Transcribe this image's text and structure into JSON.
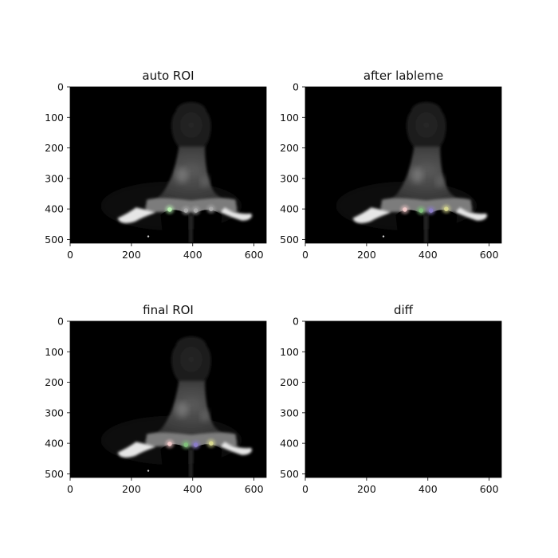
{
  "chart_data": [
    {
      "type": "image",
      "title": "auto ROI",
      "xlim": [
        0,
        640
      ],
      "ylim": [
        512,
        0
      ],
      "xticks": [
        0,
        200,
        400,
        600
      ],
      "yticks": [
        0,
        100,
        200,
        300,
        400,
        500
      ],
      "content": "grayscale-mouse",
      "roi_markers": [
        {
          "x": 325,
          "y": 402,
          "color": "#b8f0b0"
        },
        {
          "x": 378,
          "y": 405,
          "color": "#aaaaaa"
        },
        {
          "x": 410,
          "y": 405,
          "color": "#aaaaaa"
        },
        {
          "x": 460,
          "y": 400,
          "color": "#aaaaaa"
        }
      ]
    },
    {
      "type": "image",
      "title": "after lableme",
      "xlim": [
        0,
        640
      ],
      "ylim": [
        512,
        0
      ],
      "xticks": [
        0,
        200,
        400,
        600
      ],
      "yticks": [
        0,
        100,
        200,
        300,
        400,
        500
      ],
      "content": "grayscale-mouse",
      "roi_markers": [
        {
          "x": 325,
          "y": 402,
          "color": "#f0c8c8"
        },
        {
          "x": 378,
          "y": 405,
          "color": "#7fc07a"
        },
        {
          "x": 410,
          "y": 405,
          "color": "#8a7cc8"
        },
        {
          "x": 460,
          "y": 400,
          "color": "#d8d890"
        }
      ]
    },
    {
      "type": "image",
      "title": "final ROI",
      "xlim": [
        0,
        640
      ],
      "ylim": [
        512,
        0
      ],
      "xticks": [
        0,
        200,
        400,
        600
      ],
      "yticks": [
        0,
        100,
        200,
        300,
        400,
        500
      ],
      "content": "grayscale-mouse",
      "roi_markers": [
        {
          "x": 325,
          "y": 402,
          "color": "#f0c8c8"
        },
        {
          "x": 378,
          "y": 405,
          "color": "#7fc07a"
        },
        {
          "x": 410,
          "y": 405,
          "color": "#8a7cc8"
        },
        {
          "x": 460,
          "y": 400,
          "color": "#d8d890"
        }
      ]
    },
    {
      "type": "image",
      "title": "diff",
      "xlim": [
        0,
        640
      ],
      "ylim": [
        512,
        0
      ],
      "xticks": [
        0,
        200,
        400,
        600
      ],
      "yticks": [
        0,
        100,
        200,
        300,
        400,
        500
      ],
      "content": "black",
      "roi_markers": []
    }
  ]
}
